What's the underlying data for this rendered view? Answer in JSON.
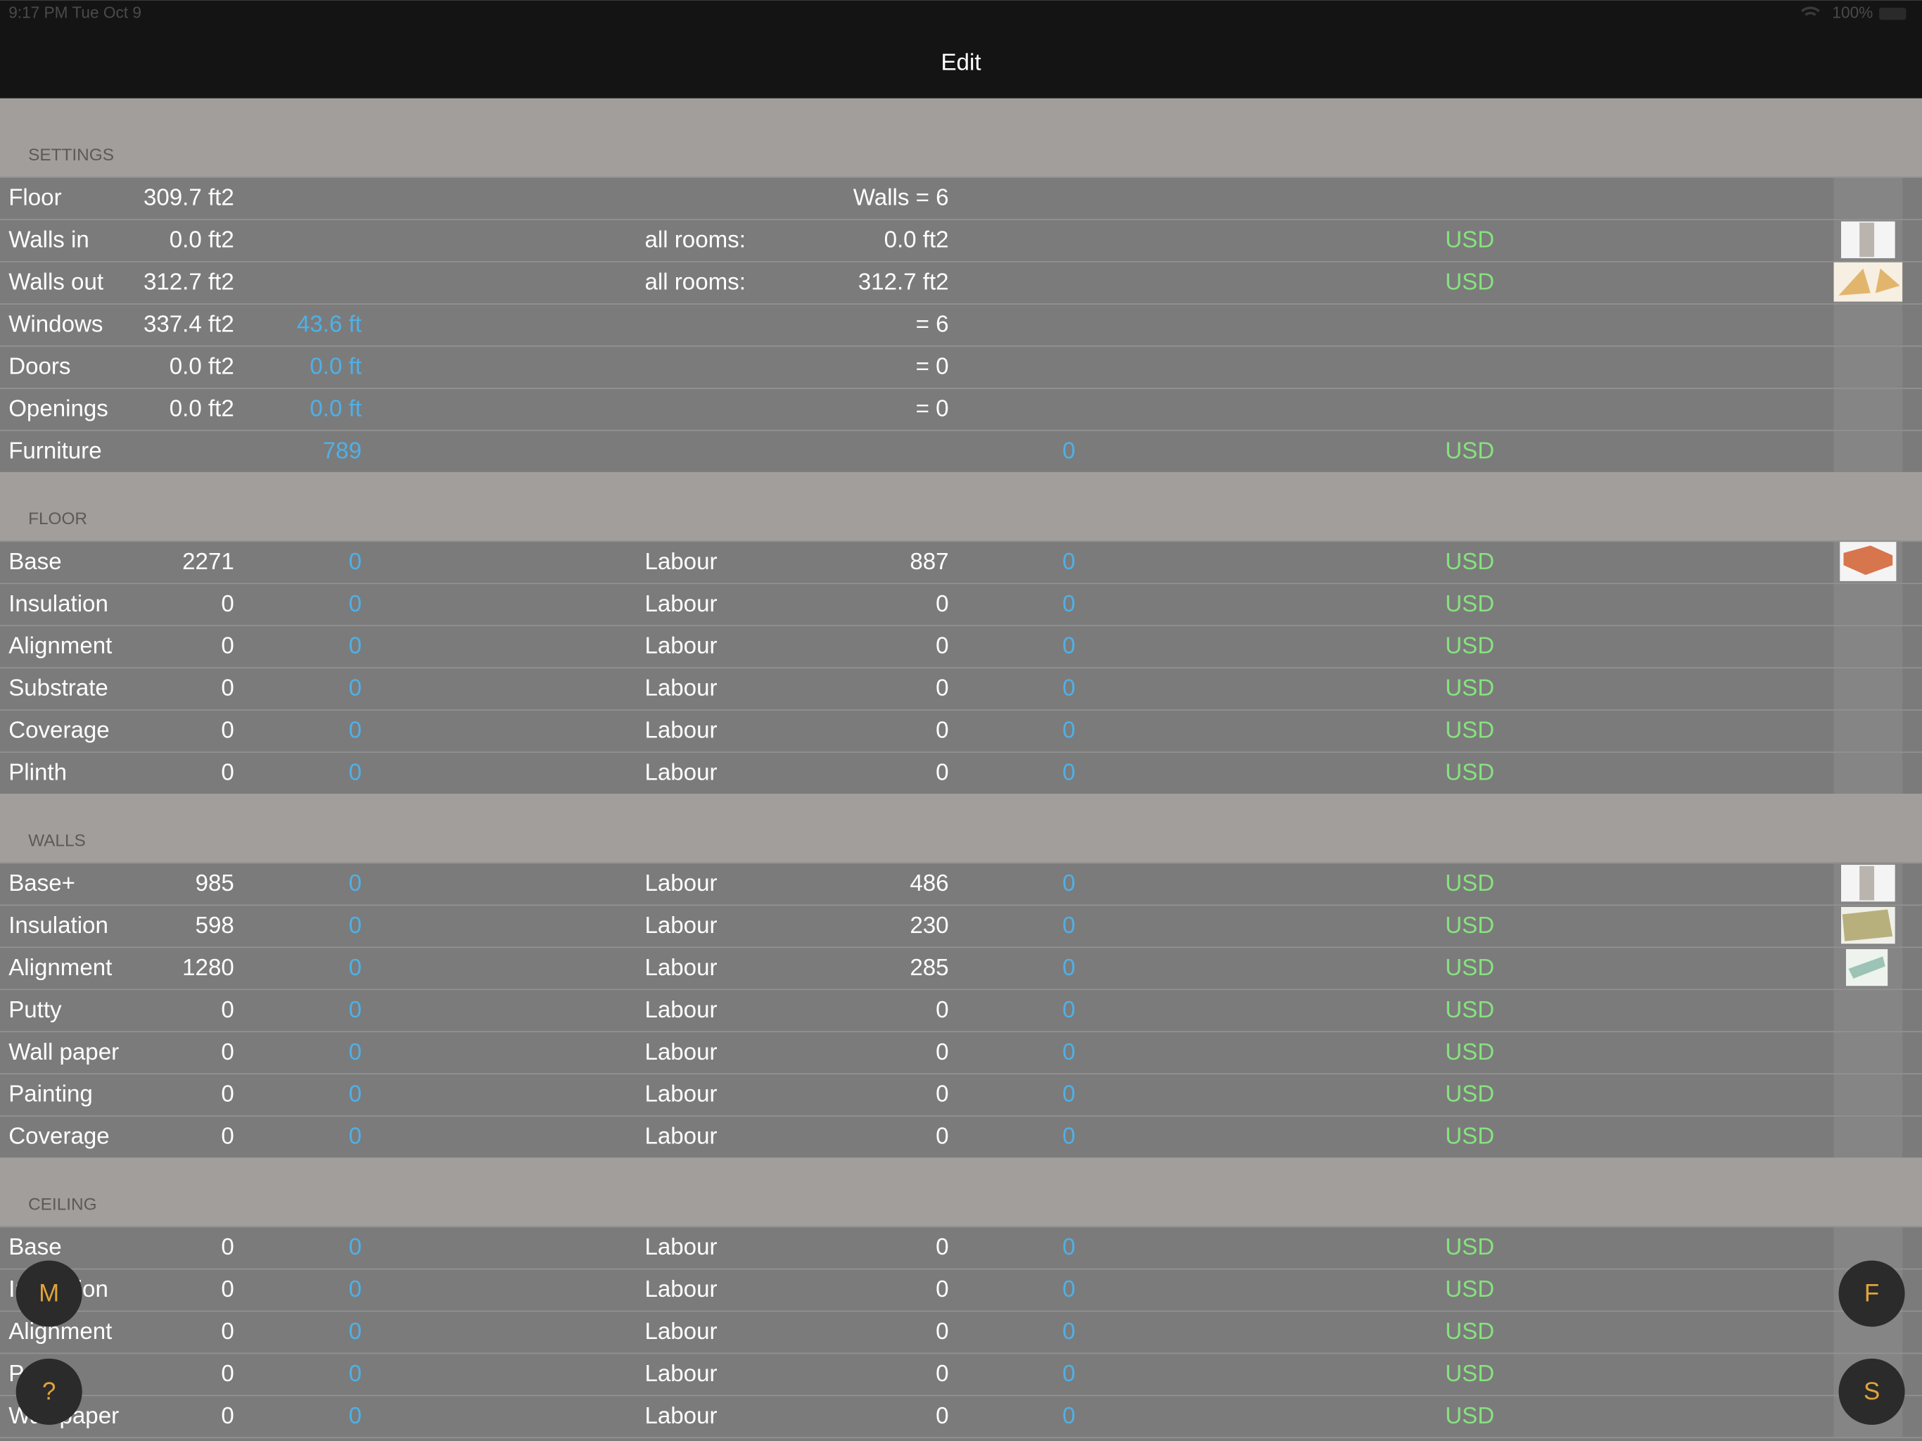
{
  "status_bar": {
    "time": "9:17 PM  Tue Oct 9",
    "battery": "100%"
  },
  "nav": {
    "title": "Edit"
  },
  "sections": [
    {
      "title": "SETTINGS",
      "rows": [
        {
          "label": "Floor",
          "qty": "309.7 ft2",
          "qty2": "Walls = 6"
        },
        {
          "label": "Walls in",
          "qty": "0.0 ft2",
          "mid": "all rooms:",
          "qty2": "0.0 ft2",
          "currency": "USD"
        },
        {
          "label": "Walls out",
          "qty": "312.7 ft2",
          "mid": "all rooms:",
          "qty2": "312.7 ft2",
          "currency": "USD"
        },
        {
          "label": "Windows",
          "qty": "337.4 ft2",
          "cost": "43.6 ft",
          "qty2": "= 6"
        },
        {
          "label": "Doors",
          "qty": "0.0 ft2",
          "cost": "0.0 ft",
          "qty2": "= 0"
        },
        {
          "label": "Openings",
          "qty": "0.0 ft2",
          "cost": "0.0 ft",
          "qty2": "= 0"
        },
        {
          "label": "Furniture",
          "cost": 789,
          "cost2": 0,
          "currency": "USD"
        }
      ]
    },
    {
      "title": "FLOOR",
      "rows": [
        {
          "label": "Base",
          "qty": 2271,
          "cost": 0,
          "mid": "Labour",
          "qty2": 887,
          "cost2": 0,
          "currency": "USD"
        },
        {
          "label": "Insulation",
          "qty": 0,
          "cost": 0,
          "mid": "Labour",
          "qty2": 0,
          "cost2": 0,
          "currency": "USD"
        },
        {
          "label": "Alignment",
          "qty": 0,
          "cost": 0,
          "mid": "Labour",
          "qty2": 0,
          "cost2": 0,
          "currency": "USD"
        },
        {
          "label": "Substrate",
          "qty": 0,
          "cost": 0,
          "mid": "Labour",
          "qty2": 0,
          "cost2": 0,
          "currency": "USD"
        },
        {
          "label": "Coverage",
          "qty": 0,
          "cost": 0,
          "mid": "Labour",
          "qty2": 0,
          "cost2": 0,
          "currency": "USD"
        },
        {
          "label": "Plinth",
          "qty": 0,
          "cost": 0,
          "mid": "Labour",
          "qty2": 0,
          "cost2": 0,
          "currency": "USD"
        }
      ]
    },
    {
      "title": "WALLS",
      "rows": [
        {
          "label": "Base+",
          "qty": 985,
          "cost": 0,
          "mid": "Labour",
          "qty2": 486,
          "cost2": 0,
          "currency": "USD"
        },
        {
          "label": "Insulation",
          "qty": 598,
          "cost": 0,
          "mid": "Labour",
          "qty2": 230,
          "cost2": 0,
          "currency": "USD"
        },
        {
          "label": "Alignment",
          "qty": 1280,
          "cost": 0,
          "mid": "Labour",
          "qty2": 285,
          "cost2": 0,
          "currency": "USD"
        },
        {
          "label": "Putty",
          "qty": 0,
          "cost": 0,
          "mid": "Labour",
          "qty2": 0,
          "cost2": 0,
          "currency": "USD"
        },
        {
          "label": "Wall paper",
          "qty": 0,
          "cost": 0,
          "mid": "Labour",
          "qty2": 0,
          "cost2": 0,
          "currency": "USD"
        },
        {
          "label": "Painting",
          "qty": 0,
          "cost": 0,
          "mid": "Labour",
          "qty2": 0,
          "cost2": 0,
          "currency": "USD"
        },
        {
          "label": "Coverage",
          "qty": 0,
          "cost": 0,
          "mid": "Labour",
          "qty2": 0,
          "cost2": 0,
          "currency": "USD"
        }
      ]
    },
    {
      "title": "CEILING",
      "rows": [
        {
          "label": "Base",
          "qty": 0,
          "cost": 0,
          "mid": "Labour",
          "qty2": 0,
          "cost2": 0,
          "currency": "USD"
        },
        {
          "label": "Insulation",
          "qty": 0,
          "cost": 0,
          "mid": "Labour",
          "qty2": 0,
          "cost2": 0,
          "currency": "USD"
        },
        {
          "label": "Alignment",
          "qty": 0,
          "cost": 0,
          "mid": "Labour",
          "qty2": 0,
          "cost2": 0,
          "currency": "USD"
        },
        {
          "label": "Putty",
          "qty": 0,
          "cost": 0,
          "mid": "Labour",
          "qty2": 0,
          "cost2": 0,
          "currency": "USD"
        },
        {
          "label": "Wall paper",
          "qty": 0,
          "cost": 0,
          "mid": "Labour",
          "qty2": 0,
          "cost2": 0,
          "currency": "USD"
        }
      ]
    }
  ],
  "buttons": [
    "M",
    "?",
    "F",
    "S"
  ]
}
